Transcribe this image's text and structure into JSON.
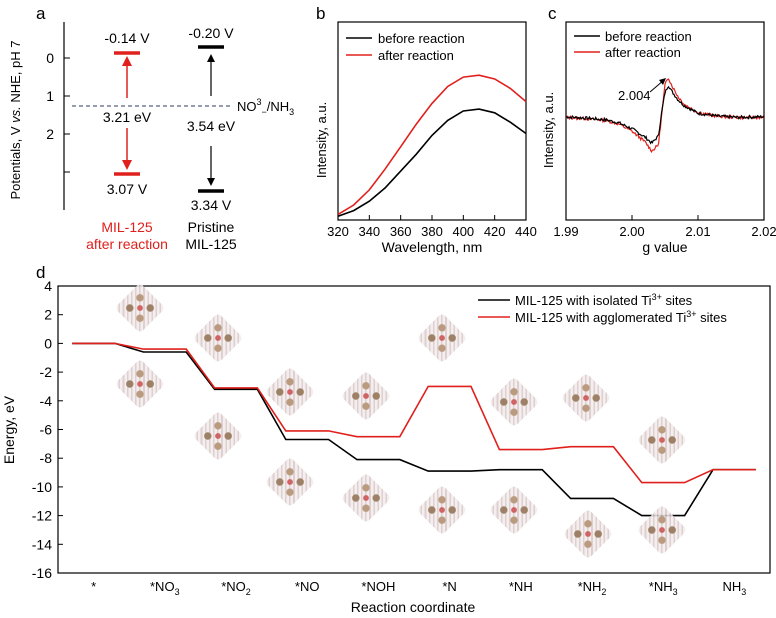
{
  "panel_labels": {
    "a": "a",
    "b": "b",
    "c": "c",
    "d": "d"
  },
  "panel_a": {
    "ylabel": "Potentials, V vs. NHE, pH 7",
    "yticks": [
      0,
      1,
      2
    ],
    "mil_after": {
      "cb": "-0.14 V",
      "vb": "3.07 V",
      "gap": "3.21 eV",
      "name1": "MIL-125",
      "name2": "after reaction",
      "cb_value": -0.14,
      "vb_value": 3.07,
      "color": "#e0201c"
    },
    "pristine": {
      "cb": "-0.20 V",
      "vb": "3.34 V",
      "gap": "3.54 eV",
      "name1": "Pristine",
      "name2": "MIL-125",
      "cb_value": -0.2,
      "vb_value": 3.34,
      "color": "#000000"
    },
    "redox_label": "NO3-/NH3",
    "redox_value": 1.2
  },
  "panel_b": {
    "xlabel": "Wavelength, nm",
    "ylabel": "Intensity, a.u.",
    "xticks": [
      320,
      340,
      360,
      380,
      400,
      420,
      440
    ],
    "legend": [
      "before reaction",
      "after reaction"
    ]
  },
  "panel_c": {
    "xlabel": "g value",
    "ylabel": "Intensity, a.u.",
    "xticks": [
      "1.99",
      "2.00",
      "2.01",
      "2.02"
    ],
    "legend": [
      "before reaction",
      "after reaction"
    ],
    "annotation": "2.004"
  },
  "chart_data": [
    {
      "type": "line",
      "panel": "b",
      "xlabel": "Wavelength, nm",
      "ylabel": "Intensity, a.u.",
      "xlim": [
        320,
        440
      ],
      "ylim": [
        0,
        1
      ],
      "series": [
        {
          "name": "before reaction",
          "color": "#000000",
          "x": [
            320,
            330,
            340,
            350,
            360,
            370,
            380,
            390,
            400,
            410,
            420,
            430,
            440
          ],
          "values": [
            0.02,
            0.05,
            0.1,
            0.17,
            0.26,
            0.35,
            0.45,
            0.53,
            0.58,
            0.59,
            0.57,
            0.52,
            0.46
          ]
        },
        {
          "name": "after reaction",
          "color": "#e0201c",
          "x": [
            320,
            330,
            340,
            350,
            360,
            370,
            380,
            390,
            400,
            410,
            420,
            430,
            440
          ],
          "values": [
            0.03,
            0.08,
            0.16,
            0.27,
            0.39,
            0.51,
            0.62,
            0.71,
            0.76,
            0.77,
            0.75,
            0.7,
            0.63
          ]
        }
      ]
    },
    {
      "type": "line",
      "panel": "c",
      "xlabel": "g value",
      "ylabel": "Intensity, a.u.",
      "xlim": [
        1.99,
        2.02
      ],
      "ylim": [
        -1,
        1
      ],
      "series": [
        {
          "name": "before reaction",
          "color": "#000000",
          "x": [
            1.99,
            1.993,
            1.996,
            1.998,
            2.0,
            2.002,
            2.003,
            2.004,
            2.0045,
            2.005,
            2.0055,
            2.006,
            2.007,
            2.008,
            2.01,
            2.013,
            2.016,
            2.02
          ],
          "values": [
            0.02,
            0.0,
            -0.03,
            -0.08,
            -0.18,
            -0.32,
            -0.42,
            -0.3,
            0.1,
            0.42,
            0.55,
            0.45,
            0.3,
            0.2,
            0.08,
            0.03,
            0.01,
            0.02
          ]
        },
        {
          "name": "after reaction",
          "color": "#e0201c",
          "x": [
            1.99,
            1.993,
            1.996,
            1.998,
            2.0,
            2.002,
            2.003,
            2.004,
            2.0045,
            2.005,
            2.0055,
            2.006,
            2.007,
            2.008,
            2.01,
            2.013,
            2.016,
            2.02
          ],
          "values": [
            0.01,
            -0.01,
            -0.04,
            -0.1,
            -0.22,
            -0.4,
            -0.55,
            -0.45,
            0.05,
            0.55,
            0.68,
            0.55,
            0.35,
            0.22,
            0.09,
            0.03,
            0.01,
            0.01
          ]
        }
      ]
    },
    {
      "type": "line",
      "panel": "d",
      "xlabel": "Reaction coordinate",
      "ylabel": "Energy, eV",
      "ylim": [
        -16,
        4
      ],
      "yticks": [
        4,
        2,
        0,
        -2,
        -4,
        -6,
        -8,
        -10,
        -12,
        -14,
        -16
      ],
      "categories": [
        "*",
        "*NO3",
        "*NO2",
        "*NO",
        "*NOH",
        "*N",
        "*NH",
        "*NH2",
        "*NH3",
        "NH3"
      ],
      "category_labels": [
        {
          "main": "*",
          "sub": ""
        },
        {
          "main": "*NO",
          "sub": "3"
        },
        {
          "main": "*NO",
          "sub": "2"
        },
        {
          "main": "*NO",
          "sub": ""
        },
        {
          "main": "*NOH",
          "sub": ""
        },
        {
          "main": "*N",
          "sub": ""
        },
        {
          "main": "*NH",
          "sub": ""
        },
        {
          "main": "*NH",
          "sub": "2"
        },
        {
          "main": "*NH",
          "sub": "3"
        },
        {
          "main": "NH",
          "sub": "3"
        }
      ],
      "series": [
        {
          "name": "MIL-125 with isolated Ti3+ sites",
          "label_main": "MIL-125 with isolated Ti",
          "label_sup": "3+",
          "label_tail": " sites",
          "color": "#000000",
          "values": [
            0,
            -0.6,
            -3.2,
            -6.7,
            -8.1,
            -8.9,
            -8.8,
            -10.8,
            -12.0,
            -8.8
          ]
        },
        {
          "name": "MIL-125 with agglomerated Ti3+ sites",
          "label_main": "MIL-125 with agglomerated Ti",
          "label_sup": "3+",
          "label_tail": " sites",
          "color": "#e0201c",
          "values": [
            0,
            -0.4,
            -3.1,
            -6.1,
            -6.5,
            -3.0,
            -7.4,
            -7.2,
            -9.7,
            -8.8
          ]
        }
      ]
    }
  ]
}
